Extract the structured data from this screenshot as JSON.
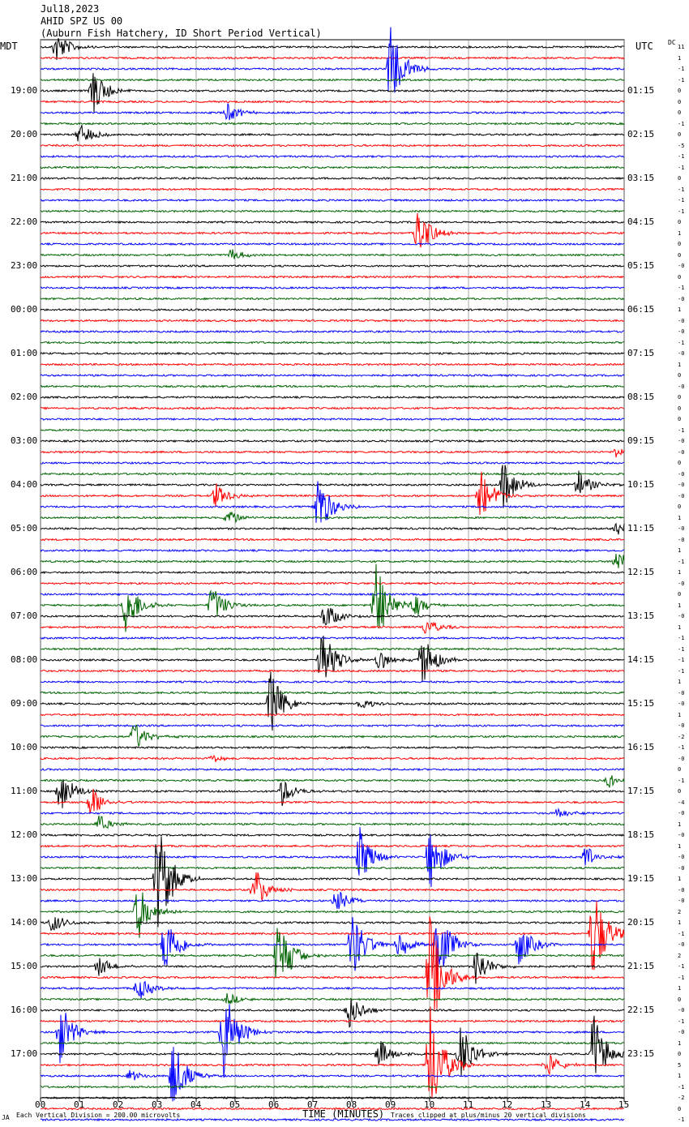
{
  "header": {
    "date": "Jul18,2023",
    "station": "AHID SPZ US 00",
    "location": "(Auburn Fish Hatchery, ID Short Period Vertical)",
    "left_zone": "MDT",
    "right_zone": "UTC",
    "dc_label": "DC"
  },
  "footer": {
    "xlabel": "TIME (MINUTES)",
    "scale_note": "Each Vertical Division =  200.00 microvolts",
    "clip_note": "Traces clipped at plus/minus 20 vertical divisions",
    "corner_mark": "JA"
  },
  "chart_data": {
    "type": "line",
    "title": "AHID SPZ US 00 (Auburn Fish Hatchery, ID Short Period Vertical)",
    "xlabel": "TIME (MINUTES)",
    "xlim": [
      0,
      15
    ],
    "x_ticks": [
      "00",
      "01",
      "02",
      "03",
      "04",
      "05",
      "06",
      "07",
      "08",
      "09",
      "10",
      "11",
      "12",
      "13",
      "14",
      "15"
    ],
    "left_time_labels": [
      "19:00",
      "20:00",
      "21:00",
      "22:00",
      "23:00",
      "00:00",
      "01:00",
      "02:00",
      "03:00",
      "04:00",
      "05:00",
      "06:00",
      "07:00",
      "08:00",
      "09:00",
      "10:00",
      "11:00",
      "12:00",
      "13:00",
      "14:00",
      "15:00",
      "16:00",
      "17:00"
    ],
    "right_time_labels": [
      "01:15",
      "02:15",
      "03:15",
      "04:15",
      "05:15",
      "06:15",
      "07:15",
      "08:15",
      "09:15",
      "10:15",
      "11:15",
      "12:15",
      "13:15",
      "14:15",
      "15:15",
      "16:15",
      "17:15",
      "18:15",
      "19:15",
      "20:15",
      "21:15",
      "22:15",
      "23:15"
    ],
    "dc_offsets": [
      "11",
      "1",
      "-1",
      "-1",
      "0",
      "0",
      "0",
      "-1",
      "0",
      "-5",
      "-1",
      "-1",
      "0",
      "-1",
      "-1",
      "-1",
      "0",
      "1",
      "0",
      "0",
      "-0",
      "0",
      "-1",
      "-0",
      "1",
      "-0",
      "-0",
      "-1",
      "-0",
      "1",
      "0",
      "-0",
      "0",
      "0",
      "0",
      "-1",
      "-0",
      "-0",
      "0",
      "-0",
      "-0",
      "-0",
      "0",
      "1",
      "-0",
      "-0",
      "1",
      "-1",
      "1",
      "-0",
      "0",
      "1",
      "-0",
      "1",
      "-1",
      "-1",
      "-1",
      "-1",
      "1",
      "-0",
      "-0",
      "1",
      "-0",
      "-2",
      "-1",
      "-0",
      "0",
      "-1",
      "0",
      "-4",
      "-0",
      "1",
      "-0",
      "1",
      "-0",
      "-0",
      "1",
      "-0",
      "-0",
      "2",
      "1",
      "-1",
      "-0",
      "2",
      "-1",
      "-1",
      "1",
      "0",
      "-0",
      "-1",
      "-0",
      "1",
      "0",
      "5",
      "1",
      "-1",
      "-2",
      "0",
      "-1"
    ],
    "trace_colors": [
      "#000000",
      "#ff0000",
      "#0000ff",
      "#006400"
    ],
    "events": [
      {
        "trace": 0,
        "minute": 0.4,
        "amp": 1.6
      },
      {
        "trace": 2,
        "minute": 9.0,
        "amp": 4.0
      },
      {
        "trace": 4,
        "minute": 1.35,
        "amp": 2.3
      },
      {
        "trace": 6,
        "minute": 4.8,
        "amp": 0.9
      },
      {
        "trace": 8,
        "minute": 1.0,
        "amp": 1.2
      },
      {
        "trace": 17,
        "minute": 9.7,
        "amp": 2.6
      },
      {
        "trace": 19,
        "minute": 4.9,
        "amp": 0.6
      },
      {
        "trace": 37,
        "minute": 14.8,
        "amp": 0.5
      },
      {
        "trace": 40,
        "minute": 11.9,
        "amp": 2.4
      },
      {
        "trace": 40,
        "minute": 13.8,
        "amp": 1.4
      },
      {
        "trace": 41,
        "minute": 11.3,
        "amp": 2.5
      },
      {
        "trace": 41,
        "minute": 4.5,
        "amp": 1.2
      },
      {
        "trace": 42,
        "minute": 7.1,
        "amp": 3.4
      },
      {
        "trace": 43,
        "minute": 4.8,
        "amp": 0.8
      },
      {
        "trace": 44,
        "minute": 14.8,
        "amp": 0.8
      },
      {
        "trace": 47,
        "minute": 14.8,
        "amp": 1.1
      },
      {
        "trace": 51,
        "minute": 2.2,
        "amp": 2.8
      },
      {
        "trace": 51,
        "minute": 4.4,
        "amp": 1.9
      },
      {
        "trace": 51,
        "minute": 8.6,
        "amp": 4.2
      },
      {
        "trace": 51,
        "minute": 9.6,
        "amp": 1.1
      },
      {
        "trace": 52,
        "minute": 7.3,
        "amp": 1.4
      },
      {
        "trace": 53,
        "minute": 9.9,
        "amp": 0.9
      },
      {
        "trace": 56,
        "minute": 7.2,
        "amp": 3.6
      },
      {
        "trace": 56,
        "minute": 9.8,
        "amp": 2.8
      },
      {
        "trace": 56,
        "minute": 8.7,
        "amp": 1.0
      },
      {
        "trace": 60,
        "minute": 5.9,
        "amp": 3.2
      },
      {
        "trace": 60,
        "minute": 8.2,
        "amp": 0.6
      },
      {
        "trace": 63,
        "minute": 2.4,
        "amp": 1.5
      },
      {
        "trace": 65,
        "minute": 4.4,
        "amp": 0.4
      },
      {
        "trace": 67,
        "minute": 14.6,
        "amp": 0.7
      },
      {
        "trace": 68,
        "minute": 0.5,
        "amp": 2.2
      },
      {
        "trace": 68,
        "minute": 6.2,
        "amp": 1.4
      },
      {
        "trace": 69,
        "minute": 1.3,
        "amp": 1.6
      },
      {
        "trace": 70,
        "minute": 13.3,
        "amp": 0.5
      },
      {
        "trace": 71,
        "minute": 1.5,
        "amp": 0.9
      },
      {
        "trace": 74,
        "minute": 8.2,
        "amp": 2.8
      },
      {
        "trace": 74,
        "minute": 10.0,
        "amp": 3.2
      },
      {
        "trace": 74,
        "minute": 14.0,
        "amp": 1.2
      },
      {
        "trace": 76,
        "minute": 3.0,
        "amp": 6.0
      },
      {
        "trace": 77,
        "minute": 5.5,
        "amp": 2.0
      },
      {
        "trace": 78,
        "minute": 7.6,
        "amp": 1.2
      },
      {
        "trace": 79,
        "minute": 2.5,
        "amp": 2.8
      },
      {
        "trace": 80,
        "minute": 0.3,
        "amp": 1.0
      },
      {
        "trace": 81,
        "minute": 14.2,
        "amp": 5.0
      },
      {
        "trace": 82,
        "minute": 3.2,
        "amp": 3.2
      },
      {
        "trace": 82,
        "minute": 8.0,
        "amp": 3.4
      },
      {
        "trace": 82,
        "minute": 9.2,
        "amp": 1.5
      },
      {
        "trace": 82,
        "minute": 10.2,
        "amp": 3.8
      },
      {
        "trace": 82,
        "minute": 12.3,
        "amp": 2.2
      },
      {
        "trace": 83,
        "minute": 6.1,
        "amp": 4.2
      },
      {
        "trace": 84,
        "minute": 1.5,
        "amp": 1.0
      },
      {
        "trace": 84,
        "minute": 11.2,
        "amp": 2.0
      },
      {
        "trace": 85,
        "minute": 10.0,
        "amp": 6.0
      },
      {
        "trace": 86,
        "minute": 2.5,
        "amp": 1.2
      },
      {
        "trace": 87,
        "minute": 4.8,
        "amp": 0.6
      },
      {
        "trace": 88,
        "minute": 7.9,
        "amp": 2.0
      },
      {
        "trace": 90,
        "minute": 0.5,
        "amp": 3.0
      },
      {
        "trace": 90,
        "minute": 4.7,
        "amp": 4.8
      },
      {
        "trace": 92,
        "minute": 8.7,
        "amp": 1.5
      },
      {
        "trace": 92,
        "minute": 10.8,
        "amp": 3.0
      },
      {
        "trace": 92,
        "minute": 14.2,
        "amp": 4.2
      },
      {
        "trace": 93,
        "minute": 10.0,
        "amp": 6.0
      },
      {
        "trace": 93,
        "minute": 13.0,
        "amp": 1.3
      },
      {
        "trace": 94,
        "minute": 3.4,
        "amp": 3.4
      },
      {
        "trace": 94,
        "minute": 2.3,
        "amp": 0.6
      }
    ]
  }
}
